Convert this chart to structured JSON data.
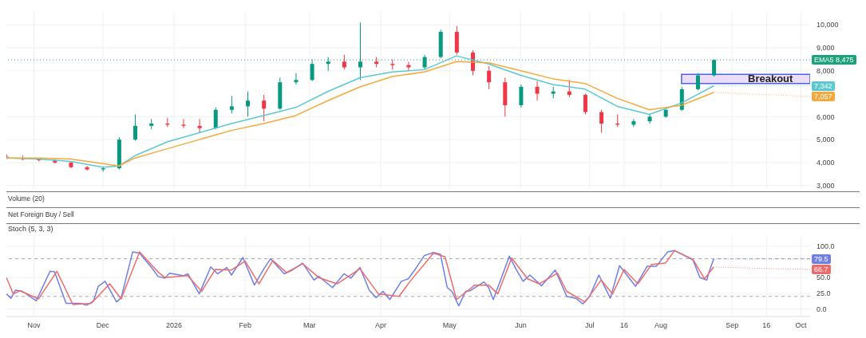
{
  "chart_data": [
    {
      "type": "candlestick",
      "xlim": [
        "2025-10-20",
        "2026-10-05"
      ],
      "xticks": [
        {
          "value": "2025-11-01",
          "label": null
        },
        {
          "value": "2025-12-01",
          "label": null
        },
        {
          "value": "2026-01-01",
          "label": null
        },
        {
          "value": "2026-02-01",
          "label": null
        },
        {
          "value": "2026-03-01",
          "label": null
        },
        {
          "value": "2026-04-01",
          "label": null
        },
        {
          "value": "2026-05-01",
          "label": null
        },
        {
          "value": "2026-06-01",
          "label": null
        },
        {
          "value": "2026-07-01",
          "label": null
        },
        {
          "value": "2026-07-16",
          "label": null
        },
        {
          "value": "2026-08-01",
          "label": null
        },
        {
          "value": "2026-09-01",
          "label": null
        },
        {
          "value": "2026-09-16",
          "label": null
        },
        {
          "value": "2026-10-01",
          "label": null
        }
      ],
      "tick_labels": "y",
      "ylim": [
        2850,
        10600
      ],
      "yticks": [
        {
          "value": 3000,
          "label": "3,000"
        },
        {
          "value": 4000,
          "label": "4,000"
        },
        {
          "value": 5000,
          "label": "5,000"
        },
        {
          "value": 6000,
          "label": "6,000"
        },
        {
          "value": 8000,
          "label": "8,000"
        },
        {
          "value": 9000,
          "label": "9,000"
        },
        {
          "value": 10000,
          "label": "10,000"
        }
      ],
      "grid": true,
      "x": [
        "2025-10-20",
        "2025-10-27",
        "2025-11-03",
        "2025-11-10",
        "2025-11-17",
        "2025-11-24",
        "2025-12-01",
        "2025-12-08",
        "2025-12-15",
        "2025-12-22",
        "2025-12-29",
        "2026-01-05",
        "2026-01-12",
        "2026-01-19",
        "2026-01-26",
        "2026-02-02",
        "2026-02-09",
        "2026-02-16",
        "2026-02-23",
        "2026-03-02",
        "2026-03-09",
        "2026-03-16",
        "2026-03-23",
        "2026-03-30",
        "2026-04-06",
        "2026-04-13",
        "2026-04-20",
        "2026-04-27",
        "2026-05-04",
        "2026-05-11",
        "2026-05-18",
        "2026-05-25",
        "2026-06-01",
        "2026-06-08",
        "2026-06-15",
        "2026-06-22",
        "2026-06-29",
        "2026-07-06",
        "2026-07-13",
        "2026-07-20",
        "2026-07-27",
        "2026-08-03",
        "2026-08-10",
        "2026-08-17",
        "2026-08-24"
      ],
      "ohlc": [
        [
          4250,
          4350,
          4150,
          4200
        ],
        [
          4200,
          4300,
          4100,
          4150
        ],
        [
          4150,
          4200,
          4050,
          4100
        ],
        [
          4100,
          4150,
          3950,
          4000
        ],
        [
          4000,
          4050,
          3750,
          3800
        ],
        [
          3800,
          3850,
          3650,
          3700
        ],
        [
          3700,
          3800,
          3600,
          3750
        ],
        [
          3750,
          5100,
          3700,
          5000
        ],
        [
          5000,
          6100,
          4950,
          5600
        ],
        [
          5600,
          5900,
          5450,
          5700
        ],
        [
          5700,
          5950,
          5550,
          5650
        ],
        [
          5650,
          5900,
          5500,
          5600
        ],
        [
          5600,
          5900,
          5300,
          5500
        ],
        [
          5500,
          6400,
          5450,
          6300
        ],
        [
          6300,
          6900,
          6150,
          6450
        ],
        [
          6450,
          7100,
          6000,
          6700
        ],
        [
          6700,
          6950,
          5800,
          6350
        ],
        [
          6350,
          7700,
          6300,
          7500
        ],
        [
          7500,
          7900,
          7400,
          7600
        ],
        [
          7600,
          8500,
          7550,
          8300
        ],
        [
          8300,
          8600,
          8000,
          8400
        ],
        [
          8400,
          8700,
          8050,
          8150
        ],
        [
          8150,
          10100,
          7600,
          8400
        ],
        [
          8400,
          8600,
          8150,
          8300
        ],
        [
          8300,
          8500,
          8050,
          8250
        ],
        [
          8250,
          8400,
          8000,
          8150
        ],
        [
          8150,
          8700,
          8050,
          8600
        ],
        [
          8600,
          9800,
          8550,
          9700
        ],
        [
          9700,
          9950,
          8700,
          8800
        ],
        [
          8800,
          8900,
          7800,
          8000
        ],
        [
          8000,
          8200,
          7200,
          7500
        ],
        [
          7500,
          7700,
          6000,
          6500
        ],
        [
          6500,
          7400,
          6400,
          7300
        ],
        [
          7300,
          7550,
          6700,
          7000
        ],
        [
          7000,
          7300,
          6800,
          7100
        ],
        [
          7100,
          7600,
          6850,
          6950
        ],
        [
          6950,
          7000,
          6100,
          6200
        ],
        [
          6200,
          6300,
          5300,
          5700
        ],
        [
          5700,
          6100,
          5550,
          5650
        ],
        [
          5650,
          5900,
          5550,
          5800
        ],
        [
          5800,
          6100,
          5700,
          6000
        ],
        [
          6000,
          6350,
          5950,
          6300
        ],
        [
          6300,
          7300,
          6250,
          7200
        ],
        [
          7200,
          7900,
          7150,
          7800
        ],
        [
          7800,
          8500,
          7750,
          8475
        ]
      ],
      "colors": [
        "#f23645",
        "#f23645",
        "#f23645",
        "#f23645",
        "#f23645",
        "#f23645",
        "#089981",
        "#089981",
        "#089981",
        "#089981",
        "#f23645",
        "#f23645",
        "#f23645",
        "#089981",
        "#089981",
        "#089981",
        "#f23645",
        "#089981",
        "#089981",
        "#089981",
        "#089981",
        "#f23645",
        "#089981",
        "#f23645",
        "#f23645",
        "#f23645",
        "#089981",
        "#089981",
        "#f23645",
        "#f23645",
        "#f23645",
        "#f23645",
        "#089981",
        "#f23645",
        "#089981",
        "#f23645",
        "#f23645",
        "#f23645",
        "#f23645",
        "#089981",
        "#089981",
        "#089981",
        "#089981",
        "#089981",
        "#089981"
      ],
      "series": [
        {
          "type": "line",
          "color": "#5cc8d0",
          "x": [
            "2025-10-20",
            "2025-11-03",
            "2025-11-17",
            "2025-12-01",
            "2025-12-08",
            "2025-12-15",
            "2025-12-29",
            "2026-01-12",
            "2026-01-26",
            "2026-02-09",
            "2026-02-23",
            "2026-03-09",
            "2026-03-23",
            "2026-04-06",
            "2026-04-20",
            "2026-05-04",
            "2026-05-18",
            "2026-06-01",
            "2026-06-15",
            "2026-06-29",
            "2026-07-13",
            "2026-07-27",
            "2026-08-10",
            "2026-08-24"
          ],
          "values": [
            4200,
            4150,
            4050,
            3800,
            3850,
            4300,
            4900,
            5300,
            5700,
            6050,
            6400,
            7100,
            7700,
            7950,
            8050,
            8650,
            8300,
            7800,
            7400,
            7200,
            6450,
            6100,
            6600,
            7342
          ]
        },
        {
          "type": "line",
          "color": "#f5a93c",
          "x": [
            "2025-10-20",
            "2025-11-03",
            "2025-11-17",
            "2025-12-01",
            "2025-12-08",
            "2025-12-15",
            "2025-12-29",
            "2026-01-12",
            "2026-01-26",
            "2026-02-09",
            "2026-02-23",
            "2026-03-09",
            "2026-03-23",
            "2026-04-06",
            "2026-04-20",
            "2026-05-04",
            "2026-05-18",
            "2026-06-01",
            "2026-06-15",
            "2026-06-29",
            "2026-07-13",
            "2026-07-27",
            "2026-08-10",
            "2026-08-24"
          ],
          "values": [
            4200,
            4200,
            4150,
            3950,
            3850,
            4200,
            4600,
            5000,
            5400,
            5700,
            6050,
            6700,
            7300,
            7750,
            7950,
            8400,
            8350,
            8000,
            7650,
            7450,
            6800,
            6300,
            6500,
            7057
          ]
        }
      ],
      "ref_lines": [
        {
          "axis": "y",
          "value": 8475,
          "label": "EMA5 8,475",
          "color": "#1aa37a",
          "line_style": "dotted"
        }
      ],
      "bands": [
        {
          "axis": "y",
          "from": 7450,
          "to": 7850,
          "label": "Breakout",
          "color": "#e9d8f7"
        }
      ],
      "annotations": [
        {
          "text": "7,342",
          "x": "2026-08-24",
          "y": 7342
        },
        {
          "text": "7,057",
          "x": "2026-08-24",
          "y": 7057
        },
        "Volume (20)",
        "Net Foreign Buy / Sell"
      ]
    },
    {
      "type": "line",
      "title": "Stoch (5, 3, 3)",
      "xlim": [
        "2025-10-20",
        "2026-10-05"
      ],
      "xticks": [
        {
          "value": "2025-11-01",
          "label": "Nov"
        },
        {
          "value": "2025-12-01",
          "label": "Dec"
        },
        {
          "value": "2026-01-01",
          "label": "2026"
        },
        {
          "value": "2026-02-01",
          "label": "Feb"
        },
        {
          "value": "2026-03-01",
          "label": "Mar"
        },
        {
          "value": "2026-04-01",
          "label": "Apr"
        },
        {
          "value": "2026-05-01",
          "label": "May"
        },
        {
          "value": "2026-06-01",
          "label": "Jun"
        },
        {
          "value": "2026-07-01",
          "label": "Jul"
        },
        {
          "value": "2026-07-16",
          "label": "16"
        },
        {
          "value": "2026-08-01",
          "label": "Aug"
        },
        {
          "value": "2026-09-01",
          "label": "Sep"
        },
        {
          "value": "2026-09-16",
          "label": "16"
        },
        {
          "value": "2026-10-01",
          "label": "Oct"
        }
      ],
      "ylim": [
        -12,
        115
      ],
      "yticks": [
        {
          "value": 0,
          "label": "0.0"
        },
        {
          "value": 25,
          "label": "25.0"
        },
        {
          "value": 50,
          "label": "50.0"
        },
        {
          "value": 100,
          "label": "100.0"
        }
      ],
      "grid": true,
      "series": [
        {
          "color": "#6f7fe8",
          "x": [
            "2025-10-20",
            "2025-10-22",
            "2025-10-24",
            "2025-10-27",
            "2025-11-02",
            "2025-11-08",
            "2025-11-10",
            "2025-11-15",
            "2025-11-21",
            "2025-11-24",
            "2025-11-27",
            "2025-11-29",
            "2025-12-02",
            "2025-12-07",
            "2025-12-09",
            "2025-12-14",
            "2025-12-17",
            "2025-12-22",
            "2025-12-25",
            "2025-12-28",
            "2025-12-30",
            "2026-01-05",
            "2026-01-07",
            "2026-01-12",
            "2026-01-17",
            "2026-01-20",
            "2026-01-24",
            "2026-01-26",
            "2026-01-31",
            "2026-02-05",
            "2026-02-09",
            "2026-02-12",
            "2026-02-18",
            "2026-02-21",
            "2026-02-26",
            "2026-03-03",
            "2026-03-05",
            "2026-03-11",
            "2026-03-16",
            "2026-03-19",
            "2026-03-23",
            "2026-03-27",
            "2026-03-30",
            "2026-04-02",
            "2026-04-05",
            "2026-04-10",
            "2026-04-13",
            "2026-04-16",
            "2026-04-20",
            "2026-04-24",
            "2026-04-27",
            "2026-04-30",
            "2026-05-02",
            "2026-05-05",
            "2026-05-08",
            "2026-05-10",
            "2026-05-16",
            "2026-05-18",
            "2026-05-20",
            "2026-05-23",
            "2026-05-27",
            "2026-05-30",
            "2026-06-02",
            "2026-06-05",
            "2026-06-10",
            "2026-06-16",
            "2026-06-21",
            "2026-06-25",
            "2026-06-28",
            "2026-07-01",
            "2026-07-05",
            "2026-07-10",
            "2026-07-14",
            "2026-07-21",
            "2026-07-26",
            "2026-07-30",
            "2026-08-04",
            "2026-08-07",
            "2026-08-15",
            "2026-08-18",
            "2026-08-21",
            "2026-08-22",
            "2026-08-24"
          ],
          "values": [
            24,
            17,
            30,
            28,
            13,
            60,
            59,
            9,
            9,
            6,
            13,
            36,
            44,
            11,
            18,
            91,
            89,
            67,
            52,
            49,
            57,
            53,
            56,
            24,
            67,
            56,
            66,
            54,
            82,
            38,
            63,
            80,
            56,
            61,
            73,
            46,
            52,
            34,
            56,
            49,
            66,
            30,
            18,
            28,
            15,
            44,
            48,
            63,
            85,
            90,
            87,
            34,
            28,
            5,
            28,
            29,
            43,
            34,
            15,
            44,
            84,
            63,
            44,
            54,
            37,
            62,
            20,
            17,
            8,
            20,
            54,
            17,
            69,
            36,
            68,
            68,
            91,
            93,
            78,
            50,
            46,
            59,
            79.5
          ]
        },
        {
          "color": "#ee6b6b",
          "x": [
            "2025-10-20",
            "2025-10-23",
            "2025-10-26",
            "2025-11-03",
            "2025-11-11",
            "2025-11-18",
            "2025-11-26",
            "2025-12-04",
            "2025-12-09",
            "2025-12-17",
            "2025-12-25",
            "2025-12-28",
            "2026-01-07",
            "2026-01-13",
            "2026-01-19",
            "2026-01-26",
            "2026-02-01",
            "2026-02-07",
            "2026-02-13",
            "2026-02-19",
            "2026-02-26",
            "2026-03-05",
            "2026-03-13",
            "2026-03-23",
            "2026-03-31",
            "2026-04-09",
            "2026-04-14",
            "2026-04-24",
            "2026-04-29",
            "2026-05-04",
            "2026-05-12",
            "2026-05-18",
            "2026-05-22",
            "2026-05-28",
            "2026-06-04",
            "2026-06-09",
            "2026-06-17",
            "2026-06-21",
            "2026-06-29",
            "2026-07-06",
            "2026-07-11",
            "2026-07-16",
            "2026-07-22",
            "2026-07-28",
            "2026-08-03",
            "2026-08-07",
            "2026-08-15",
            "2026-08-20",
            "2026-08-24"
          ],
          "values": [
            50,
            24,
            29,
            16,
            60,
            7,
            9,
            40,
            16,
            91,
            59,
            50,
            53,
            28,
            63,
            62,
            76,
            40,
            77,
            58,
            72,
            50,
            40,
            64,
            24,
            20,
            45,
            89,
            83,
            15,
            38,
            38,
            24,
            81,
            48,
            40,
            57,
            28,
            11,
            46,
            24,
            63,
            40,
            71,
            73,
            93,
            79,
            48,
            66.7
          ]
        }
      ],
      "ref_lines": [
        {
          "axis": "y",
          "value": 80,
          "color": "#aaaaaa",
          "line_style": "dashed"
        },
        {
          "axis": "y",
          "value": 20,
          "color": "#aaaaaa",
          "line_style": "dashed"
        }
      ],
      "annotations": [
        {
          "text": "79.5",
          "x": "2026-08-24",
          "y": 79.5
        },
        {
          "text": "66.7",
          "x": "2026-08-24",
          "y": 66.7
        }
      ]
    }
  ]
}
